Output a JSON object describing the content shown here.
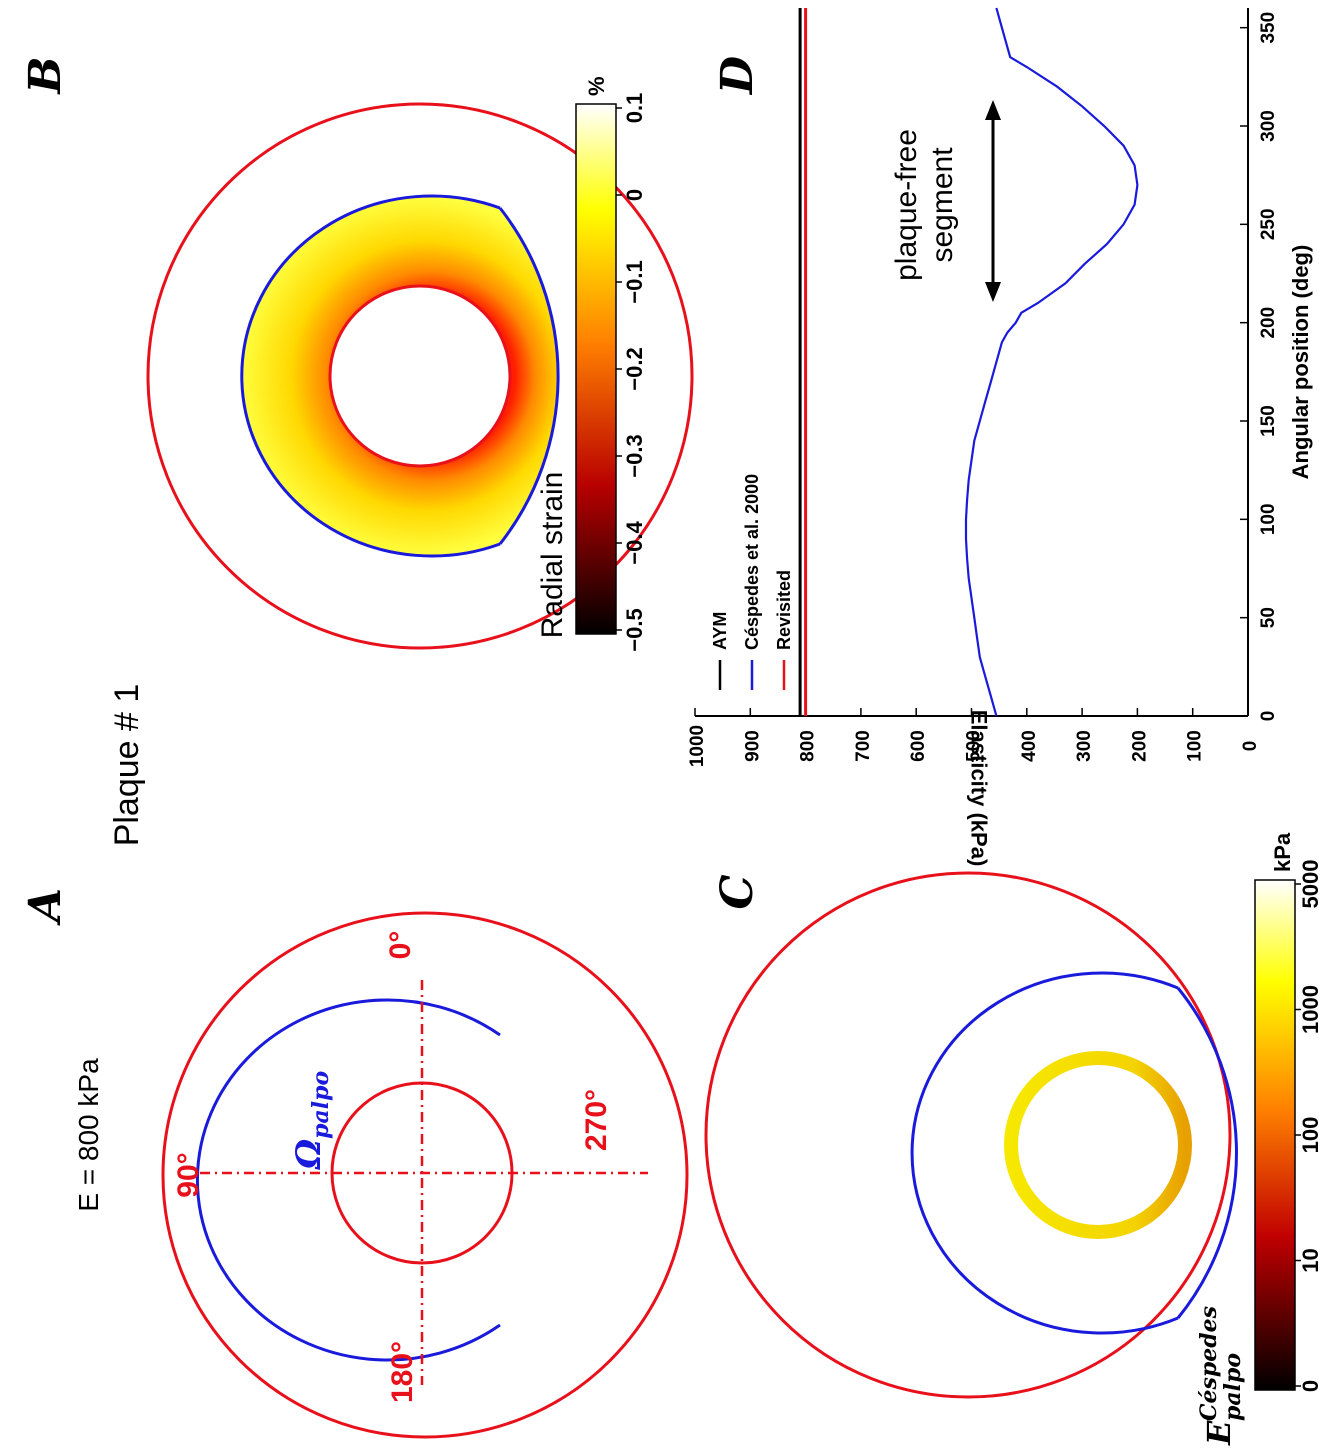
{
  "figure": {
    "title": "Plaque # 1",
    "colors": {
      "wall": "#e8101a",
      "palpo": "#1a1adc",
      "axes": "#000000"
    }
  },
  "panel_a": {
    "label": "A",
    "modulus_text": "E = 800 kPa",
    "region_symbol": "Ω",
    "region_subscript": "palpo",
    "angle_labels": [
      "0°",
      "90°",
      "180°",
      "270°"
    ]
  },
  "panel_b": {
    "label": "B",
    "colorbar_title": "Radial strain",
    "colorbar_unit": "%",
    "colorbar_ticks": [
      "−0.5",
      "−0.4",
      "−0.3",
      "−0.2",
      "−0.1",
      "0",
      "0.1"
    ]
  },
  "panel_c": {
    "label": "C",
    "symbol_base": "E",
    "symbol_sup": "Céspedes",
    "symbol_sub": "palpo",
    "colorbar_unit": "kPa",
    "colorbar_ticks": [
      "0",
      "10",
      "100",
      "1000",
      "5000"
    ]
  },
  "panel_d": {
    "label": "D",
    "annotation_line1": "plaque-free",
    "annotation_line2": "segment"
  },
  "chart_data": {
    "type": "line",
    "xlabel": "Angular position (deg)",
    "ylabel": "Elasticity (kPa)",
    "xlim": [
      0,
      360
    ],
    "ylim": [
      0,
      1000
    ],
    "xticks": [
      0,
      50,
      100,
      150,
      200,
      250,
      300,
      350
    ],
    "yticks": [
      0,
      100,
      200,
      300,
      400,
      500,
      600,
      700,
      800,
      900,
      1000
    ],
    "legend": "top-left",
    "series": [
      {
        "name": "AYM",
        "color": "#000000",
        "x": [
          0,
          360
        ],
        "y": [
          810,
          810
        ]
      },
      {
        "name": "Céspedes et al. 2000",
        "color": "#1a1adc",
        "x": [
          0,
          10,
          20,
          30,
          40,
          50,
          60,
          70,
          80,
          90,
          100,
          110,
          120,
          130,
          140,
          150,
          160,
          170,
          180,
          190,
          195,
          200,
          205,
          210,
          220,
          230,
          240,
          250,
          260,
          270,
          280,
          290,
          300,
          310,
          320,
          330,
          335,
          340,
          350,
          360
        ],
        "y": [
          455,
          465,
          475,
          485,
          490,
          495,
          500,
          505,
          508,
          510,
          510,
          508,
          505,
          500,
          495,
          485,
          475,
          465,
          455,
          445,
          435,
          420,
          410,
          380,
          330,
          295,
          255,
          225,
          205,
          200,
          205,
          225,
          260,
          300,
          345,
          400,
          430,
          435,
          445,
          455
        ]
      },
      {
        "name": "Revisited",
        "color": "#e8101a",
        "x": [
          0,
          360
        ],
        "y": [
          800,
          800
        ]
      }
    ]
  }
}
